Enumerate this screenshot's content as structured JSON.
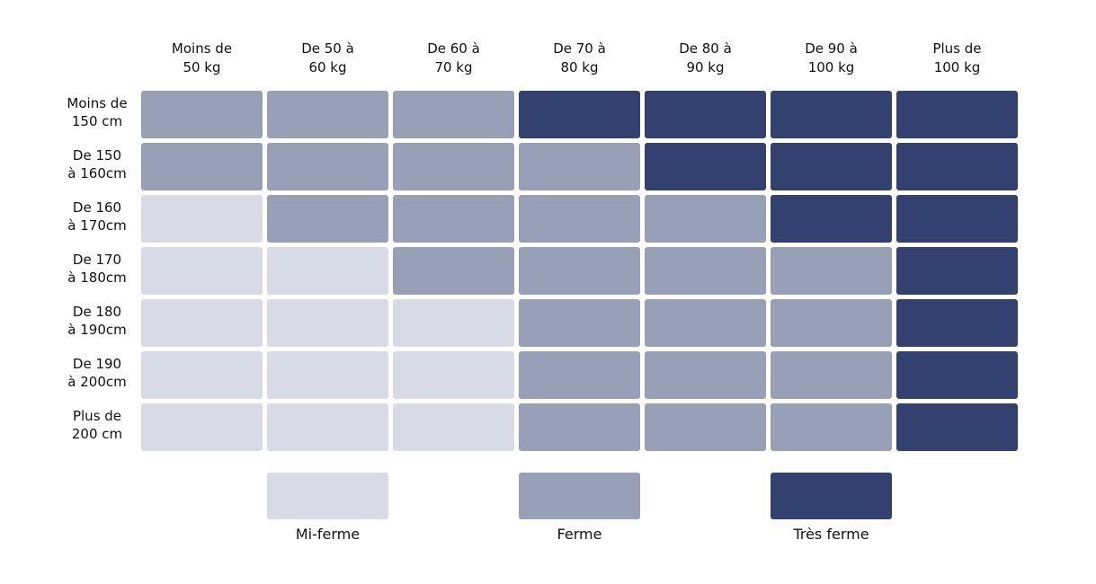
{
  "table": {
    "columns": [
      [
        "Moins de",
        "50 kg"
      ],
      [
        "De 50 à",
        "60 kg"
      ],
      [
        "De 60 à",
        "70 kg"
      ],
      [
        "De 70 à",
        "80 kg"
      ],
      [
        "De 80 à",
        "90 kg"
      ],
      [
        "De 90 à",
        "100 kg"
      ],
      [
        "Plus de",
        "100 kg"
      ]
    ],
    "rows": [
      {
        "label": [
          "Moins de",
          "150 cm"
        ],
        "levels": [
          1,
          1,
          1,
          2,
          2,
          2,
          2
        ]
      },
      {
        "label": [
          "De 150",
          "à 160cm"
        ],
        "levels": [
          1,
          1,
          1,
          1,
          2,
          2,
          2
        ]
      },
      {
        "label": [
          "De 160",
          "à 170cm"
        ],
        "levels": [
          0,
          1,
          1,
          1,
          1,
          2,
          2
        ]
      },
      {
        "label": [
          "De 170",
          "à 180cm"
        ],
        "levels": [
          0,
          0,
          1,
          1,
          1,
          1,
          2
        ]
      },
      {
        "label": [
          "De 180",
          "à 190cm"
        ],
        "levels": [
          0,
          0,
          0,
          1,
          1,
          1,
          2
        ]
      },
      {
        "label": [
          "De 190",
          "à 200cm"
        ],
        "levels": [
          0,
          0,
          0,
          1,
          1,
          1,
          2
        ]
      },
      {
        "label": [
          "Plus de",
          "200 cm"
        ],
        "levels": [
          0,
          0,
          0,
          1,
          1,
          1,
          2
        ]
      }
    ]
  },
  "legend": [
    {
      "label": "Mi-ferme",
      "color": "#d8dae5"
    },
    {
      "label": "Ferme",
      "color": "#97a0b6"
    },
    {
      "label": "Très ferme",
      "color": "#32416f"
    }
  ]
}
